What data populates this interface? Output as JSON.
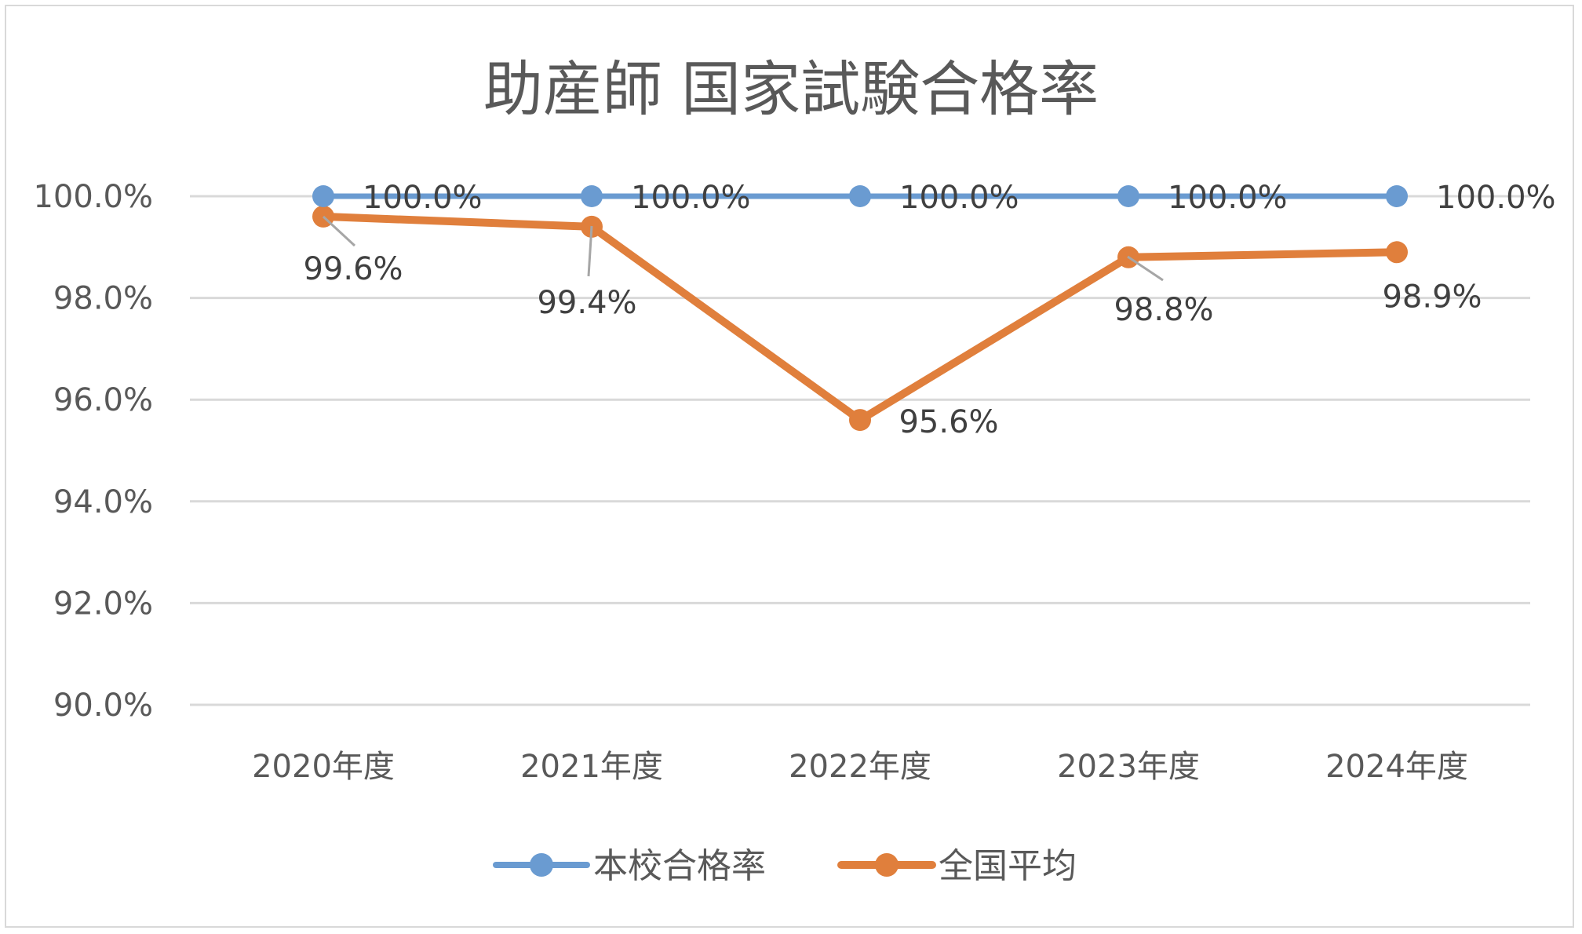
{
  "chart_data": {
    "type": "line",
    "title": "助産師 国家試験合格率",
    "categories": [
      "2020年度",
      "2021年度",
      "2022年度",
      "2023年度",
      "2024年度"
    ],
    "ylim": [
      90.0,
      100.0
    ],
    "yticks": [
      "100.0%",
      "98.0%",
      "96.0%",
      "94.0%",
      "92.0%",
      "90.0%"
    ],
    "ytick_values": [
      100,
      98,
      96,
      94,
      92,
      90
    ],
    "grid": true,
    "legend_position": "bottom",
    "series": [
      {
        "name": "本校合格率",
        "color": "#6a9bd1",
        "values": [
          100.0,
          100.0,
          100.0,
          100.0,
          100.0
        ],
        "labels": [
          "100.0%",
          "100.0%",
          "100.0%",
          "100.0%",
          "100.0%"
        ]
      },
      {
        "name": "全国平均",
        "color": "#e07f3c",
        "values": [
          99.6,
          99.4,
          95.6,
          98.8,
          98.9
        ],
        "labels": [
          "99.6%",
          "99.4%",
          "95.6%",
          "98.8%",
          "98.9%"
        ]
      }
    ]
  }
}
